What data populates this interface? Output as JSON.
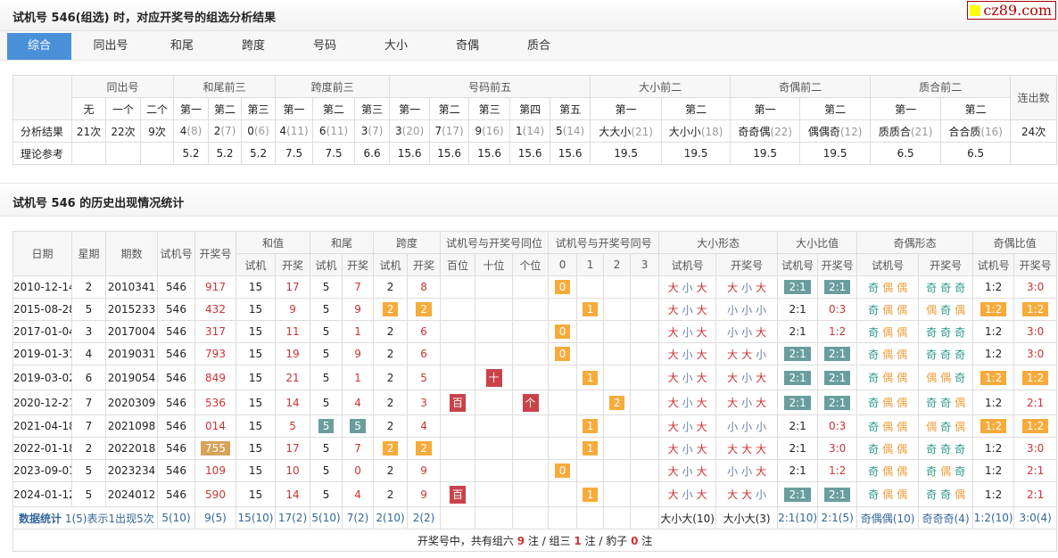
{
  "header": {
    "title": "试机号 546(组选) 时，对应开奖号的组选分析结果",
    "logo": "cz89.com"
  },
  "tabs": [
    {
      "label": "综合",
      "active": true
    },
    {
      "label": "同出号"
    },
    {
      "label": "和尾"
    },
    {
      "label": "跨度"
    },
    {
      "label": "号码"
    },
    {
      "label": "大小"
    },
    {
      "label": "奇偶"
    },
    {
      "label": "质合"
    }
  ],
  "summary": {
    "groups": [
      "同出号",
      "和尾前三",
      "跨度前三",
      "号码前五",
      "大小前二",
      "奇偶前二",
      "质合前二",
      "连出数"
    ],
    "subheaders": [
      "无",
      "一个",
      "二个",
      "第一",
      "第二",
      "第三",
      "第一",
      "第二",
      "第三",
      "第一",
      "第二",
      "第三",
      "第四",
      "第五",
      "第一",
      "第二",
      "第一",
      "第二",
      "第一",
      "第二"
    ],
    "result_label": "分析结果",
    "results": [
      [
        "21次",
        ""
      ],
      [
        "22次",
        ""
      ],
      [
        "9次",
        ""
      ],
      [
        "4",
        "(8)"
      ],
      [
        "2",
        "(7)"
      ],
      [
        "0",
        "(6)"
      ],
      [
        "4",
        "(11)"
      ],
      [
        "6",
        "(11)"
      ],
      [
        "3",
        "(7)"
      ],
      [
        "3",
        "(20)"
      ],
      [
        "7",
        "(17)"
      ],
      [
        "9",
        "(16)"
      ],
      [
        "1",
        "(14)"
      ],
      [
        "5",
        "(14)"
      ],
      [
        "大大小",
        "(21)"
      ],
      [
        "大小小",
        "(18)"
      ],
      [
        "奇奇偶",
        "(22)"
      ],
      [
        "偶偶奇",
        "(12)"
      ],
      [
        "质质合",
        "(21)"
      ],
      [
        "合合质",
        "(16)"
      ],
      [
        "24次",
        ""
      ]
    ],
    "theory_label": "理论参考",
    "theory": [
      "",
      "",
      "",
      "5.2",
      "5.2",
      "5.2",
      "7.5",
      "7.5",
      "6.6",
      "15.6",
      "15.6",
      "15.6",
      "15.6",
      "15.6",
      "19.5",
      "19.5",
      "19.5",
      "19.5",
      "6.5",
      "6.5",
      ""
    ]
  },
  "history": {
    "title": "试机号 546 的历史出现情况统计",
    "headers": {
      "single": [
        "日期",
        "星期",
        "期数",
        "试机号",
        "开奖号"
      ],
      "groups": [
        "和值",
        "和尾",
        "跨度",
        "试机号与开奖号同位",
        "试机号与开奖号同号",
        "大小形态",
        "大小比值",
        "奇偶形态",
        "奇偶比值"
      ],
      "subs": [
        "试机",
        "开奖",
        "试机",
        "开奖",
        "试机",
        "开奖",
        "百位",
        "十位",
        "个位",
        "0",
        "1",
        "2",
        "3",
        "试机号",
        "开奖号",
        "试机号",
        "开奖号",
        "试机号",
        "开奖号",
        "试机号",
        "开奖号"
      ]
    },
    "highlight_colors": {
      "o": "#f7ab3b",
      "t": "#6a9e9e",
      "r": "#c9424a",
      "n": "#d7a359"
    },
    "rows": [
      [
        "2010-12-14",
        "2",
        "2010341",
        "546",
        "917",
        "15",
        "17",
        "5",
        "7",
        "2",
        "8",
        "",
        "",
        "",
        {
          "t": "0",
          "hl": "o"
        },
        "",
        "",
        "",
        "大小大",
        "大小大",
        {
          "t": "2:1",
          "hl": "t"
        },
        {
          "t": "2:1",
          "hl": "t"
        },
        "奇偶偶",
        "奇奇奇",
        "1:2",
        "3:0"
      ],
      [
        "2015-08-28",
        "5",
        "2015233",
        "546",
        "432",
        "15",
        "9",
        "5",
        "9",
        {
          "t": "2",
          "hl": "o"
        },
        {
          "t": "2",
          "hl": "o"
        },
        "",
        "",
        "",
        "",
        {
          "t": "1",
          "hl": "o"
        },
        "",
        "",
        "大小大",
        "小小小",
        "2:1",
        "0:3",
        "奇偶偶",
        "偶奇偶",
        {
          "t": "1:2",
          "hl": "o"
        },
        {
          "t": "1:2",
          "hl": "o"
        }
      ],
      [
        "2017-01-04",
        "3",
        "2017004",
        "546",
        "317",
        "15",
        "11",
        "5",
        "1",
        "2",
        "6",
        "",
        "",
        "",
        {
          "t": "0",
          "hl": "o"
        },
        "",
        "",
        "",
        "大小大",
        "小小大",
        "2:1",
        "1:2",
        "奇偶偶",
        "奇奇奇",
        "1:2",
        "3:0"
      ],
      [
        "2019-01-31",
        "4",
        "2019031",
        "546",
        "793",
        "15",
        "19",
        "5",
        "9",
        "2",
        "6",
        "",
        "",
        "",
        {
          "t": "0",
          "hl": "o"
        },
        "",
        "",
        "",
        "大小大",
        "大大小",
        {
          "t": "2:1",
          "hl": "t"
        },
        {
          "t": "2:1",
          "hl": "t"
        },
        "奇偶偶",
        "奇奇奇",
        "1:2",
        "3:0"
      ],
      [
        "2019-03-02",
        "6",
        "2019054",
        "546",
        "849",
        "15",
        "21",
        "5",
        "1",
        "2",
        "5",
        "",
        {
          "t": "十",
          "hl": "r"
        },
        "",
        "",
        {
          "t": "1",
          "hl": "o"
        },
        "",
        "",
        "大小大",
        "大小大",
        {
          "t": "2:1",
          "hl": "t"
        },
        {
          "t": "2:1",
          "hl": "t"
        },
        "奇偶偶",
        "偶偶奇",
        {
          "t": "1:2",
          "hl": "o"
        },
        {
          "t": "1:2",
          "hl": "o"
        }
      ],
      [
        "2020-12-27",
        "7",
        "2020309",
        "546",
        "536",
        "15",
        "14",
        "5",
        "4",
        "2",
        "3",
        {
          "t": "百",
          "hl": "r"
        },
        "",
        {
          "t": "个",
          "hl": "r"
        },
        "",
        "",
        {
          "t": "2",
          "hl": "o"
        },
        "",
        "大小大",
        "大小大",
        {
          "t": "2:1",
          "hl": "t"
        },
        {
          "t": "2:1",
          "hl": "t"
        },
        "奇偶偶",
        "奇奇偶",
        "1:2",
        "2:1"
      ],
      [
        "2021-04-18",
        "7",
        "2021098",
        "546",
        "014",
        "15",
        "5",
        {
          "t": "5",
          "hl": "t"
        },
        {
          "t": "5",
          "hl": "t"
        },
        "2",
        "4",
        "",
        "",
        "",
        "",
        {
          "t": "1",
          "hl": "o"
        },
        "",
        "",
        "大小大",
        "小小小",
        "2:1",
        "0:3",
        "奇偶偶",
        "偶奇偶",
        {
          "t": "1:2",
          "hl": "o"
        },
        {
          "t": "1:2",
          "hl": "o"
        }
      ],
      [
        "2022-01-18",
        "2",
        "2022018",
        "546",
        {
          "t": "755",
          "hl": "n"
        },
        "15",
        "17",
        "5",
        "7",
        {
          "t": "2",
          "hl": "o"
        },
        {
          "t": "2",
          "hl": "o"
        },
        "",
        "",
        "",
        "",
        {
          "t": "1",
          "hl": "o"
        },
        "",
        "",
        "大小大",
        "大大大",
        "2:1",
        "3:0",
        "奇偶偶",
        "奇奇奇",
        "1:2",
        "3:0"
      ],
      [
        "2023-09-01",
        "5",
        "2023234",
        "546",
        "109",
        "15",
        "10",
        "5",
        "0",
        "2",
        "9",
        "",
        "",
        "",
        {
          "t": "0",
          "hl": "o"
        },
        "",
        "",
        "",
        "大小大",
        "小小大",
        "2:1",
        "1:2",
        "奇偶偶",
        "奇偶奇",
        "1:2",
        "2:1"
      ],
      [
        "2024-01-12",
        "5",
        "2024012",
        "546",
        "590",
        "15",
        "14",
        "5",
        "4",
        "2",
        "9",
        {
          "t": "百",
          "hl": "r"
        },
        "",
        "",
        "",
        {
          "t": "1",
          "hl": "o"
        },
        "",
        "",
        "大小大",
        "大大小",
        {
          "t": "2:1",
          "hl": "t"
        },
        {
          "t": "2:1",
          "hl": "t"
        },
        "奇偶偶",
        "奇奇偶",
        "1:2",
        "2:1"
      ]
    ],
    "stats": {
      "label": "数据统计",
      "note": " 1(5)表示1出现5次",
      "values": [
        "5(10)",
        "9(5)",
        "15(10)",
        "17(2)",
        "5(10)",
        "7(2)",
        "2(10)",
        "2(2)",
        "",
        "",
        "",
        "",
        "",
        "",
        "",
        "大小大(10)",
        "大小大(3)",
        "2:1(10)",
        "2:1(5)",
        "奇偶偶(10)",
        "奇奇奇(4)",
        "1:2(10)",
        "3:0(4)"
      ]
    },
    "footer": {
      "prefix": "开奖号中，共有组六 ",
      "zu6": "9",
      "mid1": " 注 / 组三 ",
      "zu3": "1",
      "mid2": " 注 / 豹子 ",
      "baozi": "0",
      "suffix": " 注"
    }
  }
}
